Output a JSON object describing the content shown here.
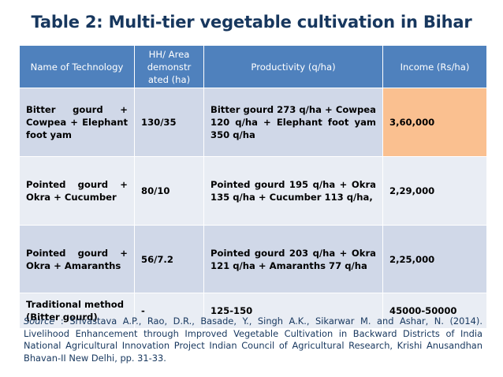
{
  "title": "Table 2: Multi-tier vegetable cultivation in Bihar",
  "table": {
    "headers": [
      "Name of Technology",
      "HH/ Area demonstr ated (ha)",
      "Productivity (q/ha)",
      "Income (Rs/ha)"
    ],
    "rows": [
      {
        "technology": "Bitter gourd + Cowpea + Elephant foot yam",
        "area": "130/35",
        "productivity": "Bitter gourd  273 q/ha + Cowpea 120 q/ha + Elephant foot yam 350 q/ha",
        "income": "3,60,000"
      },
      {
        "technology": "Pointed gourd + Okra + Cucumber",
        "area": "80/10",
        "productivity": "Pointed gourd 195 q/ha + Okra 135 q/ha + Cucumber 113 q/ha,",
        "income": "2,29,000"
      },
      {
        "technology": "Pointed gourd + Okra + Amaranths",
        "area": "56/7.2",
        "productivity": "Pointed gourd 203 q/ha + Okra 121 q/ha + Amaranths 77 q/ha",
        "income": "2,25,000"
      },
      {
        "technology": "Traditional method (Bitter gourd)",
        "area": "-",
        "productivity": "125-150",
        "income": "45000-50000"
      }
    ]
  },
  "source": {
    "label": "Source",
    "text": " : Srivastava A.P., Rao, D.R., Basade, Y., Singh A.K., Sikarwar M. and Ashar, N. (2014). Livelihood Enhancement through Improved Vegetable Cultivation in Backward Districts of India  National Agricultural Innovation Project Indian Council of Agricultural Research, Krishi Anusandhan Bhavan-II New Delhi, pp. 31-33."
  },
  "colors": {
    "title": "#17375e",
    "header_bg": "#4f81bd",
    "row_dark": "#d0d8e8",
    "row_light": "#e9edf4",
    "highlight": "#fac090"
  }
}
